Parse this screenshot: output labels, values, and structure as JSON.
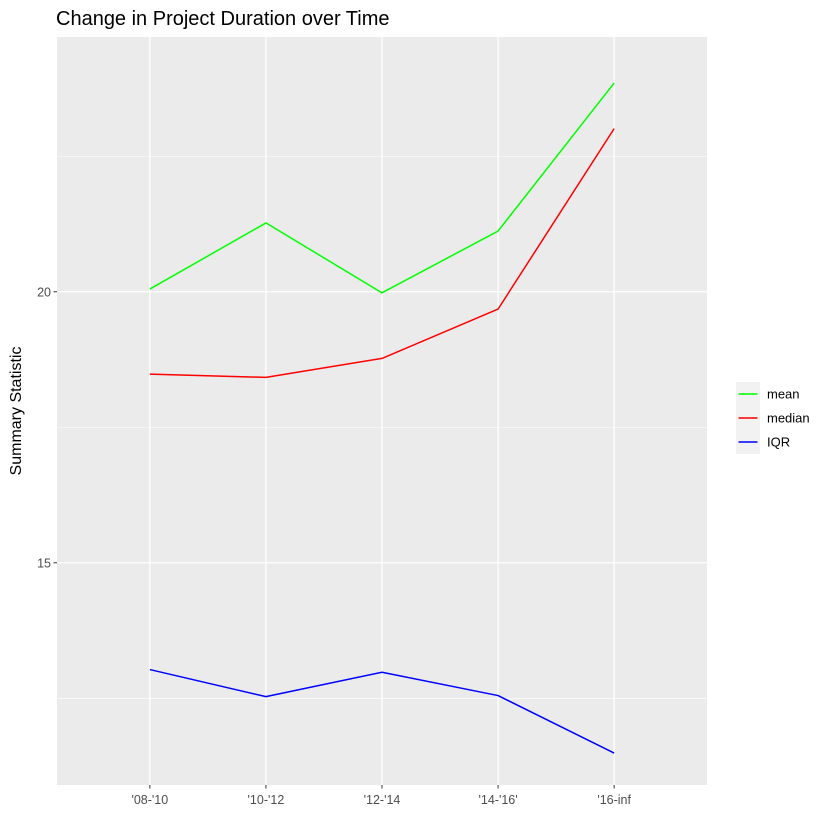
{
  "chart_data": {
    "type": "line",
    "title": "Change in Project Duration over Time",
    "xlabel": "",
    "ylabel": "Summary Statistic",
    "categories": [
      "'08-'10",
      "'10-'12",
      "'12-'14",
      "'14-'16'",
      "'16-inf"
    ],
    "y_ticks": [
      15,
      20
    ],
    "y_tick_labels": [
      "15",
      "20"
    ],
    "ylim": [
      10.9,
      24.7
    ],
    "grid": true,
    "legend_position": "right",
    "series": [
      {
        "name": "mean",
        "color": "#00ff00",
        "values": [
          20.05,
          21.27,
          19.98,
          21.12,
          23.85
        ]
      },
      {
        "name": "median",
        "color": "#ff0000",
        "values": [
          18.48,
          18.42,
          18.77,
          19.68,
          23.01
        ]
      },
      {
        "name": "IQR",
        "color": "#0000ff",
        "values": [
          13.03,
          12.53,
          12.98,
          12.55,
          11.49
        ]
      }
    ]
  }
}
